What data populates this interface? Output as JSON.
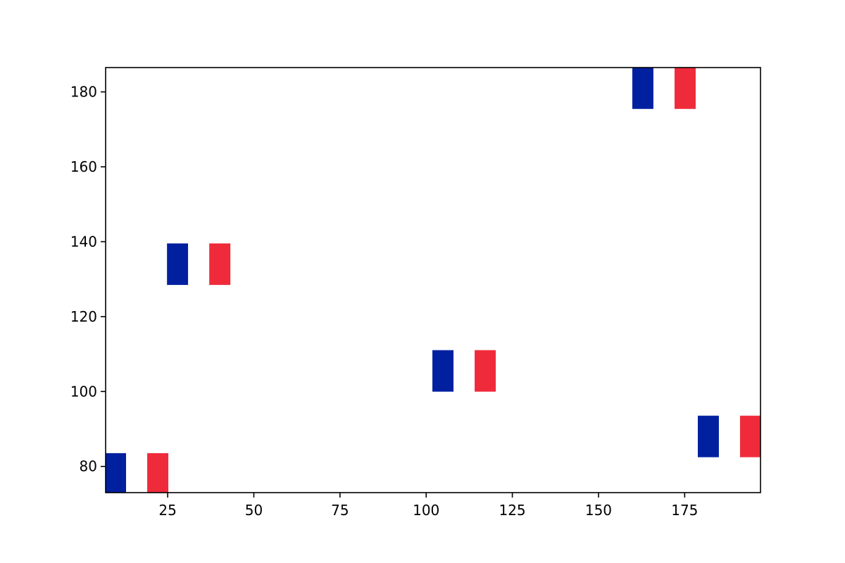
{
  "chart_data": {
    "type": "scatter",
    "title": "",
    "xlabel": "",
    "ylabel": "",
    "xlim": [
      7,
      197
    ],
    "ylim": [
      73,
      186.5
    ],
    "x_ticks": [
      25,
      50,
      75,
      100,
      125,
      150,
      175
    ],
    "y_ticks": [
      80,
      100,
      120,
      140,
      160,
      180
    ],
    "x_tick_labels": [
      "25",
      "50",
      "75",
      "100",
      "125",
      "150",
      "175"
    ],
    "y_tick_labels": [
      "80",
      "100",
      "120",
      "140",
      "160",
      "180"
    ],
    "grid": false,
    "legend": "none",
    "marker": "france-flag-icon",
    "marker_colors": {
      "blue": "#00209f",
      "white": "#ffffff",
      "red": "#ef2b3b"
    },
    "points": [
      {
        "x": 16,
        "y": 78
      },
      {
        "x": 34,
        "y": 134
      },
      {
        "x": 111,
        "y": 105.5
      },
      {
        "x": 169,
        "y": 181
      },
      {
        "x": 188,
        "y": 88
      }
    ]
  }
}
